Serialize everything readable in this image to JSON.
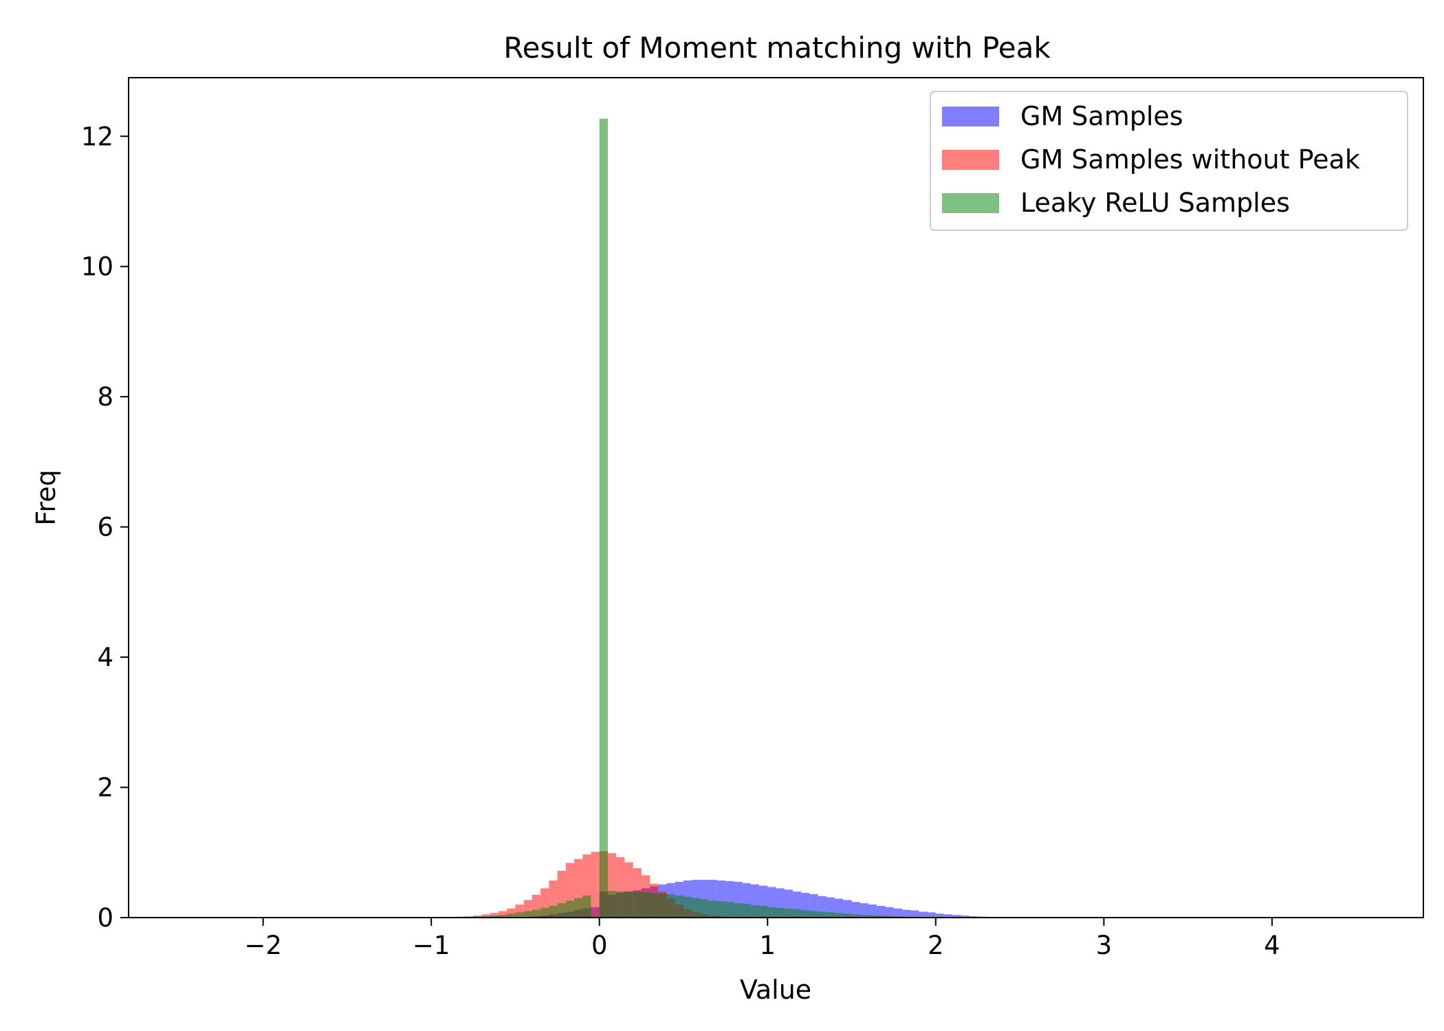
{
  "chart_data": {
    "type": "bar",
    "title": "Result of Moment matching with Peak",
    "xlabel": "Value",
    "ylabel": "Freq",
    "xlim": [
      -2.8,
      4.9
    ],
    "ylim": [
      0,
      12.9
    ],
    "xticks": [
      -2,
      -1,
      0,
      1,
      2,
      3,
      4
    ],
    "xtick_labels": [
      "−2",
      "−1",
      "0",
      "1",
      "2",
      "3",
      "4"
    ],
    "yticks": [
      0,
      2,
      4,
      6,
      8,
      10,
      12
    ],
    "ytick_labels": [
      "0",
      "2",
      "4",
      "6",
      "8",
      "10",
      "12"
    ],
    "grid": false,
    "legend_position": "top-right",
    "bin_width": 0.05,
    "series": [
      {
        "name": "GM Samples",
        "color": "#0000ff",
        "opacity": 0.5,
        "bin_start": -0.5,
        "values": [
          0.0,
          0.01,
          0.02,
          0.03,
          0.05,
          0.07,
          0.09,
          0.12,
          0.14,
          0.16,
          0.4,
          0.35,
          0.38,
          0.4,
          0.42,
          0.45,
          0.48,
          0.51,
          0.53,
          0.55,
          0.57,
          0.58,
          0.58,
          0.58,
          0.57,
          0.56,
          0.55,
          0.53,
          0.51,
          0.49,
          0.47,
          0.45,
          0.43,
          0.4,
          0.38,
          0.36,
          0.33,
          0.31,
          0.29,
          0.27,
          0.24,
          0.22,
          0.2,
          0.18,
          0.16,
          0.14,
          0.12,
          0.11,
          0.09,
          0.08,
          0.06,
          0.05,
          0.04,
          0.03,
          0.02,
          0.015,
          0.01,
          0.006,
          0.004,
          0.002,
          0.001
        ]
      },
      {
        "name": "GM Samples without Peak",
        "color": "#ff0000",
        "opacity": 0.5,
        "bin_start": -0.95,
        "values": [
          0.005,
          0.01,
          0.015,
          0.02,
          0.03,
          0.05,
          0.07,
          0.1,
          0.14,
          0.2,
          0.27,
          0.35,
          0.45,
          0.57,
          0.72,
          0.84,
          0.9,
          0.97,
          1.01,
          1.02,
          0.99,
          0.93,
          0.85,
          0.76,
          0.65,
          0.52,
          0.4,
          0.29,
          0.2,
          0.13,
          0.08,
          0.05,
          0.03,
          0.02,
          0.012,
          0.007,
          0.004
        ]
      },
      {
        "name": "Leaky ReLU Samples",
        "color": "#008000",
        "opacity": 0.5,
        "bin_start": -0.85,
        "values": [
          0.005,
          0.01,
          0.015,
          0.02,
          0.03,
          0.04,
          0.06,
          0.08,
          0.1,
          0.12,
          0.15,
          0.18,
          0.22,
          0.26,
          0.3,
          0.34,
          0.0,
          12.27,
          0.41,
          0.4,
          0.4,
          0.4,
          0.39,
          0.38,
          0.37,
          0.36,
          0.34,
          0.32,
          0.3,
          0.28,
          0.26,
          0.25,
          0.24,
          0.22,
          0.21,
          0.19,
          0.18,
          0.16,
          0.15,
          0.14,
          0.13,
          0.11,
          0.1,
          0.09,
          0.08,
          0.07,
          0.06,
          0.05,
          0.04,
          0.035,
          0.03,
          0.025,
          0.02,
          0.015,
          0.012,
          0.01,
          0.008,
          0.006,
          0.004,
          0.003,
          0.002,
          0.001
        ]
      }
    ]
  }
}
